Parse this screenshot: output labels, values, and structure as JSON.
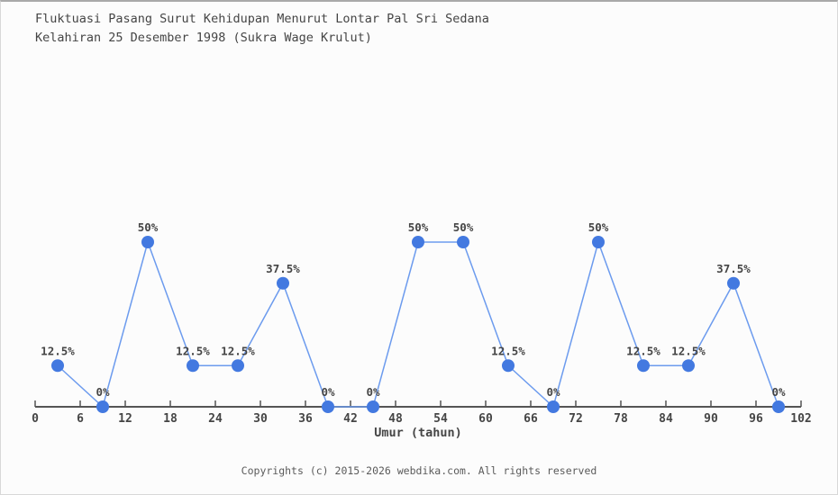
{
  "header": {
    "title_line1": "Fluktuasi Pasang Surut Kehidupan Menurut Lontar Pal Sri Sedana",
    "title_line2": "Kelahiran 25 Desember 1998 (Sukra Wage Krulut)"
  },
  "footer": {
    "text": "Copyrights (c) 2015-2026 webdika.com. All rights reserved"
  },
  "chart_data": {
    "type": "line",
    "title": "Fluktuasi Pasang Surut Kehidupan Menurut Lontar Pal Sri Sedana Kelahiran 25 Desember 1998 (Sukra Wage Krulut)",
    "xlabel": "Umur (tahun)",
    "x": [
      3,
      9,
      15,
      21,
      27,
      33,
      39,
      45,
      51,
      57,
      63,
      69,
      75,
      81,
      87,
      93,
      99
    ],
    "values": [
      12.5,
      0,
      50,
      12.5,
      12.5,
      37.5,
      0,
      0,
      50,
      50,
      12.5,
      0,
      50,
      12.5,
      12.5,
      37.5,
      0
    ],
    "point_labels": [
      "12.5%",
      "0%",
      "50%",
      "12.5%",
      "12.5%",
      "37.5%",
      "0%",
      "0%",
      "50%",
      "50%",
      "12.5%",
      "0%",
      "50%",
      "12.5%",
      "12.5%",
      "37.5%",
      "0%"
    ],
    "x_ticks": [
      0,
      6,
      12,
      18,
      24,
      30,
      36,
      42,
      48,
      54,
      60,
      66,
      72,
      78,
      84,
      90,
      96,
      102
    ],
    "xlim": [
      0,
      102
    ],
    "ylim": [
      0,
      100
    ],
    "grid": false,
    "legend": false,
    "y_axis_visible": false,
    "colors": {
      "line": "#6c9bee",
      "point": "#4379e0",
      "axis": "#555555",
      "tick_label": "#454545",
      "data_label": "#454545",
      "background": "#fcfcfc"
    }
  }
}
